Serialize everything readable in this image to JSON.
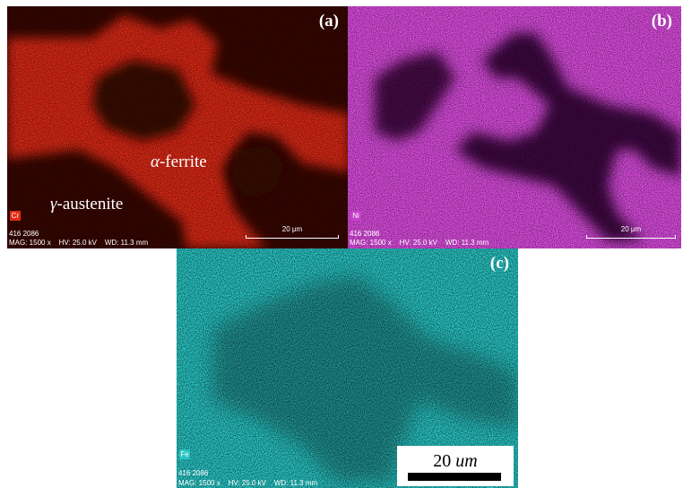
{
  "panels": {
    "a": {
      "label": "(a)",
      "element": "Cr",
      "colors": {
        "dark": "#3a0702",
        "bright": "#e22a12",
        "badge_bg": "#e22a12"
      },
      "phase_alpha_symbol": "α",
      "phase_alpha_text": "-ferrite",
      "phase_gamma_symbol": "γ",
      "phase_gamma_text": "-austenite",
      "footer_line1": "416 2086",
      "footer_line2": "MAG: 1500 x    HV: 25.0 kV    WD: 11.3 mm",
      "scalebar": "20 μm"
    },
    "b": {
      "label": "(b)",
      "element": "Ni",
      "colors": {
        "dark": "#2d0430",
        "bright": "#e24fe6",
        "badge_bg": "#c43fc8"
      },
      "footer_line1": "416 2086",
      "footer_line2": "MAG: 1500 x    HV: 25.0 kV    WD: 11.3 mm",
      "scalebar": "20 μm"
    },
    "c": {
      "label": "(c)",
      "element": "Fe",
      "colors": {
        "dark": "#0b2c2c",
        "bright": "#2ed6d6",
        "badge_bg": "#2bc2c2"
      },
      "footer_line1": "416 2086",
      "footer_line2": "MAG: 1500 x    HV: 25.0 kV    WD: 11.3 mm",
      "scalebar_value": "20 ",
      "scalebar_unit": "um"
    }
  }
}
